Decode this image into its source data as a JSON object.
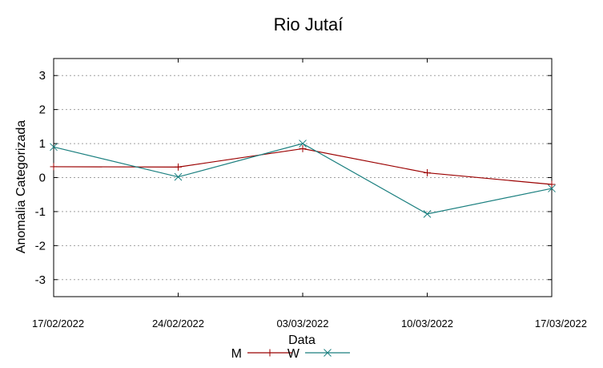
{
  "chart_data": {
    "type": "line",
    "title": "Rio Jutaí",
    "xlabel": "Data",
    "ylabel": "Anomalia Categorizada",
    "categories": [
      "17/02/2022",
      "24/02/2022",
      "03/03/2022",
      "10/03/2022",
      "17/03/2022"
    ],
    "yticks": [
      -3,
      -2,
      -1,
      0,
      1,
      2,
      3
    ],
    "ylim": [
      -3.5,
      3.5
    ],
    "grid": true,
    "legend": "bottom",
    "series": [
      {
        "name": "M",
        "color": "#9b0000",
        "marker": "plus",
        "values": [
          0.32,
          0.31,
          0.85,
          0.14,
          -0.2
        ]
      },
      {
        "name": "W",
        "color": "#1a7f7f",
        "marker": "cross",
        "values": [
          0.9,
          0.02,
          1.0,
          -1.07,
          -0.32
        ]
      }
    ]
  }
}
